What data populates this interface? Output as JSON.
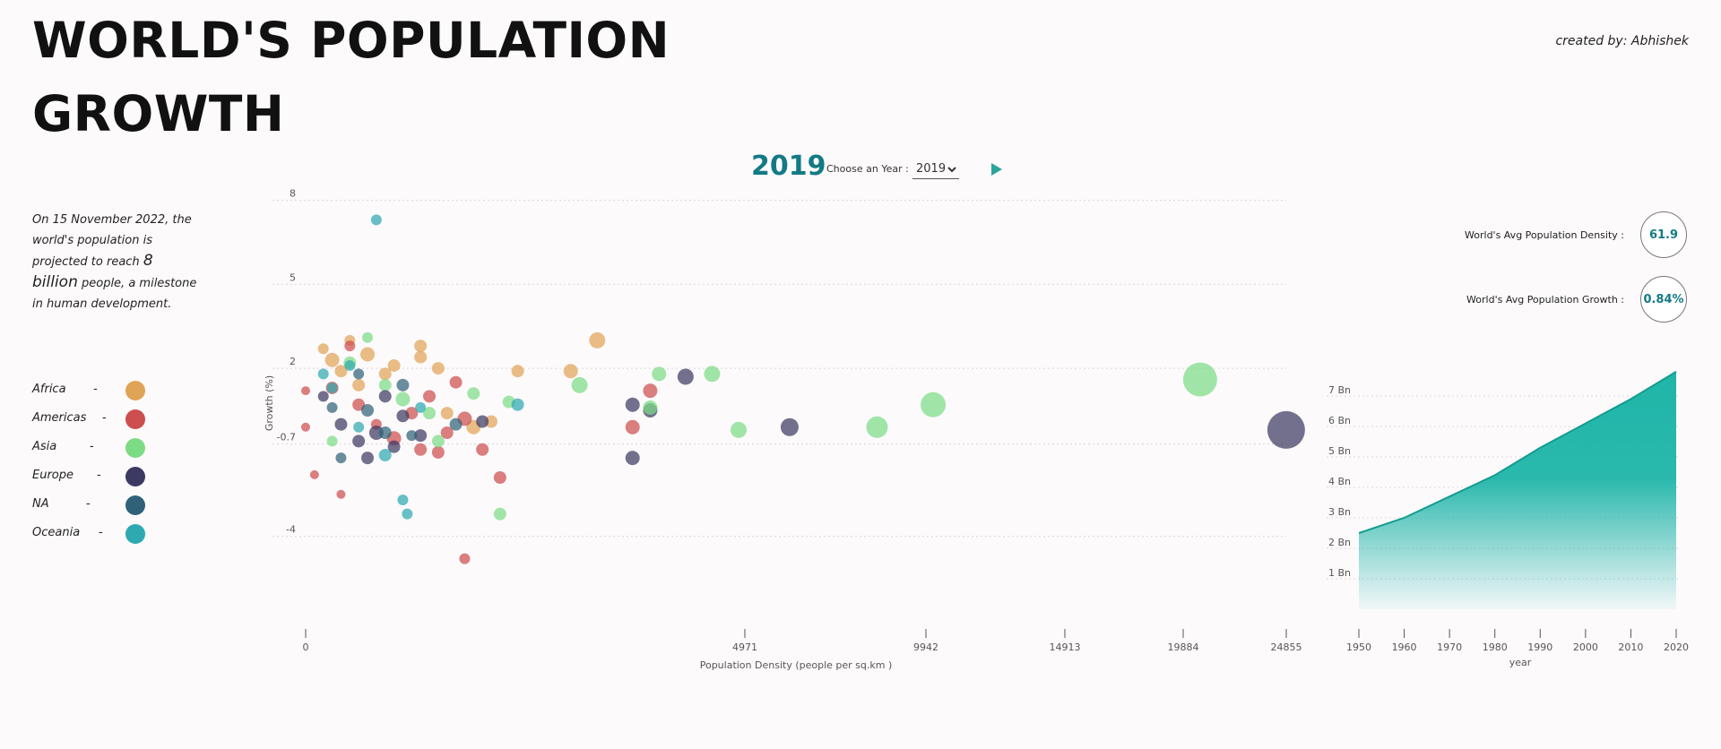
{
  "header": {
    "title_line1": "WORLD'S POPULATION",
    "title_line2": "GROWTH",
    "credit": "created by: Abhishek"
  },
  "controls": {
    "year": "2019",
    "year_label": "Choose an Year :",
    "selected_year": "2019",
    "play_icon": "play-icon"
  },
  "intro": {
    "part1": "On 15 November 2022, the world's population is projected to reach ",
    "highlight": "8 billion",
    "part2": " people, a milestone in human development."
  },
  "legend": [
    {
      "name": "Africa",
      "dash": "-",
      "color": "#e0a457"
    },
    {
      "name": "Americas",
      "dash": "-",
      "color": "#cc4e4e"
    },
    {
      "name": "Asia",
      "dash": "-",
      "color": "#7cdc86"
    },
    {
      "name": "Europe",
      "dash": "-",
      "color": "#3c3a62"
    },
    {
      "name": "NA",
      "dash": "-",
      "color": "#2f6278"
    },
    {
      "name": "Oceania",
      "dash": "-",
      "color": "#2ea9b2"
    }
  ],
  "metrics": {
    "density_label": "World's Avg Population Density :",
    "density_value": "61.9",
    "growth_label": "World's Avg Population Growth :",
    "growth_value": "0.84%"
  },
  "chart_data": [
    {
      "type": "scatter",
      "xlabel": "Population Density (people per sq.km )",
      "ylabel": "Growth (%)",
      "x_ticks": [
        0,
        4971,
        9942,
        14913,
        19884,
        24855
      ],
      "y_ticks": [
        8,
        5,
        2,
        -0.7,
        -4
      ],
      "y_tick_labels": [
        "8",
        "5",
        "2",
        "-0.7",
        "-4"
      ],
      "y_gridlines": true,
      "points": [
        {
          "region": "Oceania",
          "x": 800,
          "y": 7.3,
          "r": 6
        },
        {
          "region": "Africa",
          "x": 3300,
          "y": 3.0,
          "r": 9
        },
        {
          "region": "Africa",
          "x": 3000,
          "y": 1.9,
          "r": 8
        },
        {
          "region": "Asia",
          "x": 3100,
          "y": 1.4,
          "r": 9
        },
        {
          "region": "Asia",
          "x": 4000,
          "y": 1.8,
          "r": 8
        },
        {
          "region": "Europe",
          "x": 4300,
          "y": 1.7,
          "r": 9
        },
        {
          "region": "Asia",
          "x": 4600,
          "y": 1.8,
          "r": 9
        },
        {
          "region": "Americas",
          "x": 3900,
          "y": 1.2,
          "r": 8
        },
        {
          "region": "Europe",
          "x": 3700,
          "y": 0.7,
          "r": 8
        },
        {
          "region": "Europe",
          "x": 3900,
          "y": 0.5,
          "r": 8
        },
        {
          "region": "Asia",
          "x": 3900,
          "y": 0.6,
          "r": 8
        },
        {
          "region": "Americas",
          "x": 3700,
          "y": -0.1,
          "r": 8
        },
        {
          "region": "Asia",
          "x": 4900,
          "y": -0.2,
          "r": 9
        },
        {
          "region": "Europe",
          "x": 6200,
          "y": -0.1,
          "r": 10
        },
        {
          "region": "Asia",
          "x": 8600,
          "y": -0.1,
          "r": 12
        },
        {
          "region": "Asia",
          "x": 10200,
          "y": 0.7,
          "r": 14
        },
        {
          "region": "Asia",
          "x": 20700,
          "y": 1.6,
          "r": 19
        },
        {
          "region": "Europe",
          "x": 24850,
          "y": -0.2,
          "r": 21
        },
        {
          "region": "Europe",
          "x": 3700,
          "y": -1.2,
          "r": 8
        },
        {
          "region": "Americas",
          "x": 2200,
          "y": -1.9,
          "r": 7
        },
        {
          "region": "Asia",
          "x": 2200,
          "y": -3.2,
          "r": 7
        },
        {
          "region": "Americas",
          "x": 1800,
          "y": -4.8,
          "r": 6
        },
        {
          "region": "Oceania",
          "x": 1100,
          "y": -2.7,
          "r": 6
        },
        {
          "region": "Oceania",
          "x": 1150,
          "y": -3.2,
          "r": 6
        },
        {
          "region": "Americas",
          "x": 100,
          "y": -1.8,
          "r": 5
        },
        {
          "region": "Americas",
          "x": 400,
          "y": -2.5,
          "r": 5
        },
        {
          "region": "Americas",
          "x": 0,
          "y": -0.1,
          "r": 5
        },
        {
          "region": "Americas",
          "x": 0,
          "y": 1.2,
          "r": 5
        },
        {
          "region": "Africa",
          "x": 1300,
          "y": 2.4,
          "r": 7
        },
        {
          "region": "Africa",
          "x": 1500,
          "y": 2.0,
          "r": 7
        },
        {
          "region": "Africa",
          "x": 2400,
          "y": 1.9,
          "r": 7
        },
        {
          "region": "Africa",
          "x": 1300,
          "y": 2.8,
          "r": 7
        },
        {
          "region": "Africa",
          "x": 700,
          "y": 2.5,
          "r": 8
        },
        {
          "region": "Africa",
          "x": 500,
          "y": 3.0,
          "r": 6
        },
        {
          "region": "Africa",
          "x": 300,
          "y": 2.3,
          "r": 8
        },
        {
          "region": "Africa",
          "x": 900,
          "y": 1.8,
          "r": 7
        },
        {
          "region": "Africa",
          "x": 200,
          "y": 2.7,
          "r": 6
        },
        {
          "region": "Africa",
          "x": 600,
          "y": 1.4,
          "r": 7
        },
        {
          "region": "Africa",
          "x": 1600,
          "y": 0.4,
          "r": 7
        },
        {
          "region": "Africa",
          "x": 1900,
          "y": -0.1,
          "r": 8
        },
        {
          "region": "Africa",
          "x": 2100,
          "y": 0.1,
          "r": 7
        },
        {
          "region": "Africa",
          "x": 400,
          "y": 1.9,
          "r": 7
        },
        {
          "region": "Africa",
          "x": 1000,
          "y": 2.1,
          "r": 7
        },
        {
          "region": "Americas",
          "x": 1700,
          "y": 1.5,
          "r": 7
        },
        {
          "region": "Americas",
          "x": 1400,
          "y": 1.0,
          "r": 7
        },
        {
          "region": "Americas",
          "x": 1200,
          "y": 0.4,
          "r": 7
        },
        {
          "region": "Americas",
          "x": 1000,
          "y": -0.5,
          "r": 8
        },
        {
          "region": "Americas",
          "x": 1300,
          "y": -0.9,
          "r": 7
        },
        {
          "region": "Americas",
          "x": 1600,
          "y": -0.3,
          "r": 7
        },
        {
          "region": "Americas",
          "x": 600,
          "y": 0.7,
          "r": 7
        },
        {
          "region": "Americas",
          "x": 300,
          "y": 1.3,
          "r": 7
        },
        {
          "region": "Americas",
          "x": 1800,
          "y": 0.2,
          "r": 8
        },
        {
          "region": "Americas",
          "x": 500,
          "y": 2.8,
          "r": 6
        },
        {
          "region": "Americas",
          "x": 2000,
          "y": -0.9,
          "r": 7
        },
        {
          "region": "Americas",
          "x": 1500,
          "y": -1.0,
          "r": 7
        },
        {
          "region": "Americas",
          "x": 800,
          "y": 0.0,
          "r": 6
        },
        {
          "region": "Asia",
          "x": 700,
          "y": 3.1,
          "r": 6
        },
        {
          "region": "Asia",
          "x": 500,
          "y": 2.2,
          "r": 7
        },
        {
          "region": "Asia",
          "x": 1100,
          "y": 0.9,
          "r": 8
        },
        {
          "region": "Asia",
          "x": 1400,
          "y": 0.4,
          "r": 7
        },
        {
          "region": "Asia",
          "x": 2300,
          "y": 0.8,
          "r": 7
        },
        {
          "region": "Asia",
          "x": 1500,
          "y": -0.6,
          "r": 7
        },
        {
          "region": "Asia",
          "x": 300,
          "y": -0.6,
          "r": 6
        },
        {
          "region": "Asia",
          "x": 900,
          "y": 1.4,
          "r": 7
        },
        {
          "region": "Asia",
          "x": 1900,
          "y": 1.1,
          "r": 7
        },
        {
          "region": "Europe",
          "x": 900,
          "y": 1.0,
          "r": 7
        },
        {
          "region": "Europe",
          "x": 1100,
          "y": 0.3,
          "r": 7
        },
        {
          "region": "Europe",
          "x": 1300,
          "y": -0.4,
          "r": 7
        },
        {
          "region": "Europe",
          "x": 800,
          "y": -0.3,
          "r": 8
        },
        {
          "region": "Europe",
          "x": 600,
          "y": -0.6,
          "r": 7
        },
        {
          "region": "Europe",
          "x": 400,
          "y": 0.0,
          "r": 7
        },
        {
          "region": "Europe",
          "x": 1000,
          "y": -0.8,
          "r": 7
        },
        {
          "region": "Europe",
          "x": 2000,
          "y": 0.1,
          "r": 7
        },
        {
          "region": "Europe",
          "x": 700,
          "y": -1.2,
          "r": 7
        },
        {
          "region": "Europe",
          "x": 200,
          "y": 1.0,
          "r": 6
        },
        {
          "region": "NA",
          "x": 1100,
          "y": 1.4,
          "r": 7
        },
        {
          "region": "NA",
          "x": 700,
          "y": 0.5,
          "r": 7
        },
        {
          "region": "NA",
          "x": 900,
          "y": -0.3,
          "r": 7
        },
        {
          "region": "NA",
          "x": 400,
          "y": -1.2,
          "r": 6
        },
        {
          "region": "NA",
          "x": 1700,
          "y": 0.0,
          "r": 7
        },
        {
          "region": "NA",
          "x": 300,
          "y": 0.6,
          "r": 6
        },
        {
          "region": "NA",
          "x": 1200,
          "y": -0.4,
          "r": 6
        },
        {
          "region": "NA",
          "x": 600,
          "y": 1.8,
          "r": 6
        },
        {
          "region": "Oceania",
          "x": 2400,
          "y": 0.7,
          "r": 7
        },
        {
          "region": "Oceania",
          "x": 500,
          "y": 2.1,
          "r": 6
        },
        {
          "region": "Oceania",
          "x": 200,
          "y": 1.8,
          "r": 6
        },
        {
          "region": "Oceania",
          "x": 900,
          "y": -1.1,
          "r": 7
        },
        {
          "region": "Oceania",
          "x": 1300,
          "y": 0.6,
          "r": 6
        },
        {
          "region": "Oceania",
          "x": 600,
          "y": -0.1,
          "r": 6
        },
        {
          "region": "Oceania",
          "x": 300,
          "y": 1.3,
          "r": 6
        }
      ]
    },
    {
      "type": "area",
      "xlabel": "year",
      "ylabel": "",
      "x": [
        1950,
        1960,
        1970,
        1980,
        1990,
        2000,
        2010,
        2020
      ],
      "y": [
        2.5,
        3.0,
        3.7,
        4.4,
        5.3,
        6.1,
        6.9,
        7.8
      ],
      "y_ticks": [
        1,
        2,
        3,
        4,
        5,
        6,
        7
      ],
      "y_tick_labels": [
        "1 Bn",
        "2 Bn",
        "3 Bn",
        "4 Bn",
        "5 Bn",
        "6 Bn",
        "7 Bn"
      ],
      "ylim": [
        0,
        7.8
      ],
      "color": "#1fb5a8"
    }
  ]
}
